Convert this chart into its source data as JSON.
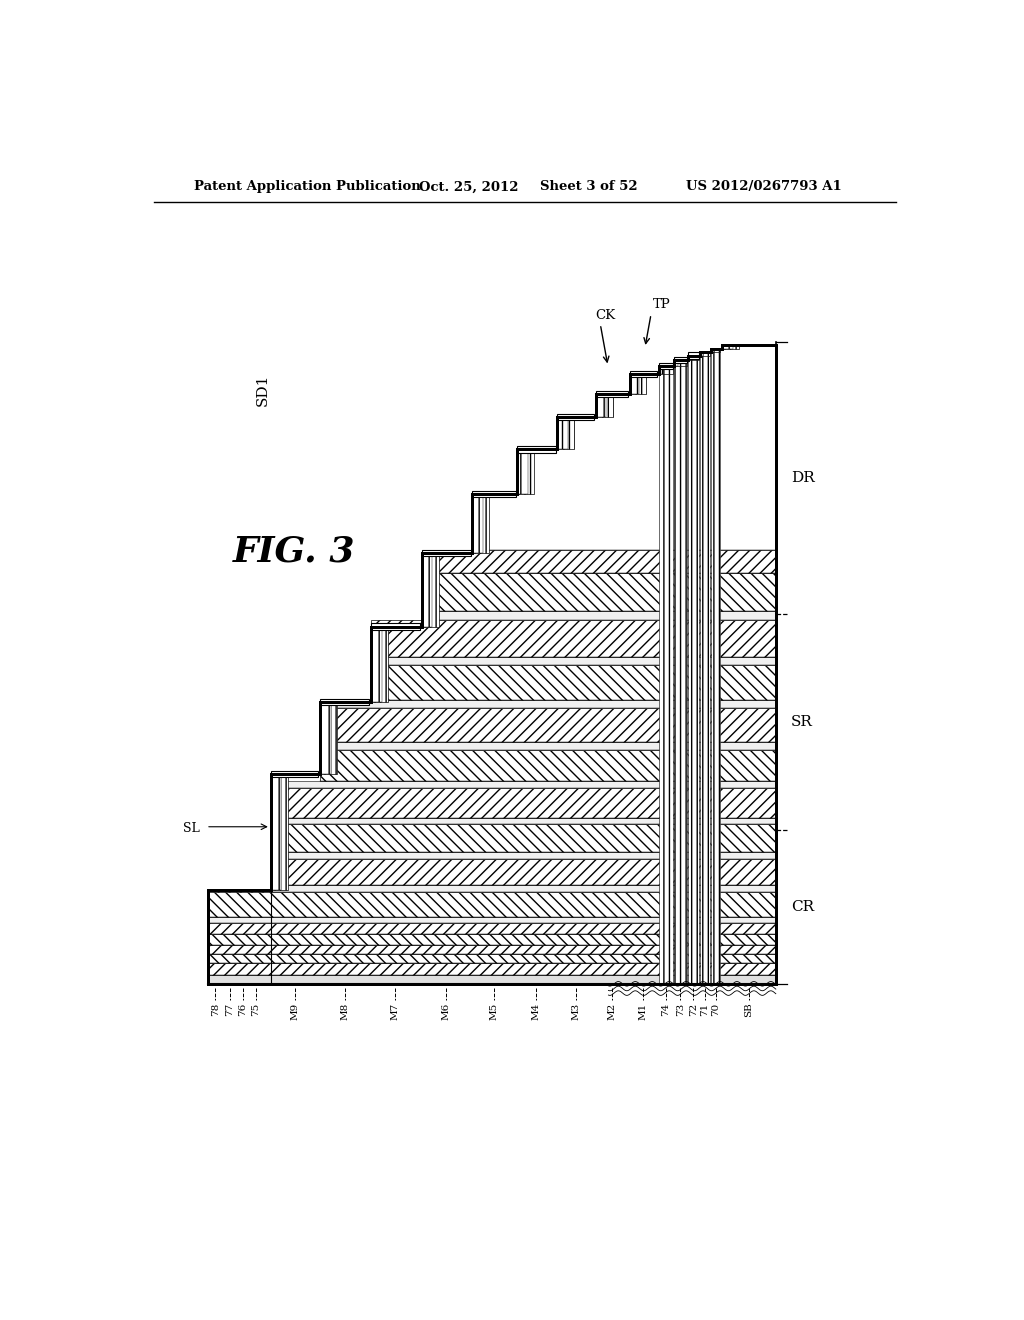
{
  "title_line1": "Patent Application Publication",
  "title_date": "Oct. 25, 2012",
  "title_sheet": "Sheet 3 of 52",
  "title_patent": "US 2012/0267793 A1",
  "fig_label": "FIG. 3",
  "sd1_label": "SD1",
  "tp_label": "TP",
  "ck_label": "CK",
  "sl_label": "SL",
  "dr_label": "DR",
  "sr_label": "SR",
  "cr_label": "CR",
  "bottom_labels": [
    "78",
    "77",
    "76",
    "75",
    "M9",
    "M8",
    "M7",
    "M6",
    "M5",
    "M4",
    "M3",
    "M2",
    "M1",
    "74",
    "73",
    "72",
    "71",
    "70",
    "SB"
  ],
  "bg_color": "#ffffff"
}
